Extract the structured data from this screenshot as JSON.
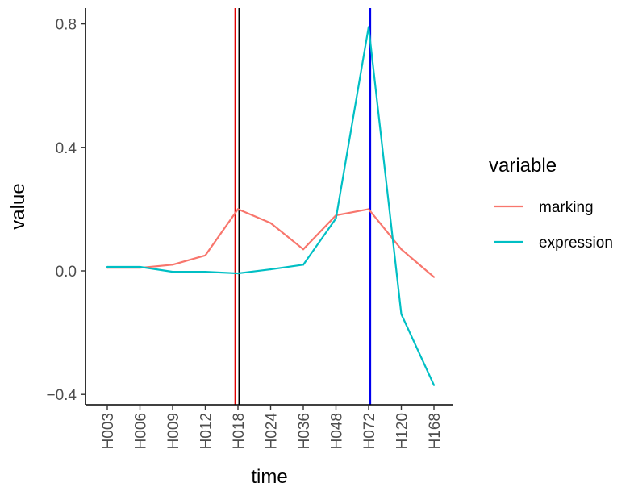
{
  "chart_data": {
    "type": "line",
    "xlabel": "time",
    "ylabel": "value",
    "categories": [
      "H003",
      "H006",
      "H009",
      "H012",
      "H018",
      "H024",
      "H036",
      "H048",
      "H072",
      "H120",
      "H168"
    ],
    "ylim": [
      -0.42,
      0.85
    ],
    "y_ticks": [
      -0.4,
      0.0,
      0.4,
      0.8
    ],
    "y_tick_labels": [
      "−0.4",
      "0.0",
      "0.4",
      "0.8"
    ],
    "grid": false,
    "legend": {
      "title": "variable",
      "position": "right"
    },
    "series": [
      {
        "name": "marking",
        "color": "#F8766D",
        "values": [
          0.01,
          0.01,
          0.02,
          0.05,
          0.2,
          0.155,
          0.07,
          0.18,
          0.2,
          0.07,
          -0.02
        ]
      },
      {
        "name": "expression",
        "color": "#00BFC4",
        "values": [
          0.013,
          0.013,
          -0.003,
          -0.003,
          -0.008,
          0.005,
          0.02,
          0.17,
          0.79,
          -0.14,
          -0.37
        ]
      }
    ],
    "vlines": [
      {
        "x": 3.92,
        "color": "#E00000"
      },
      {
        "x": 4.04,
        "color": "#000000"
      },
      {
        "x": 8.05,
        "color": "#0000EE"
      }
    ]
  }
}
